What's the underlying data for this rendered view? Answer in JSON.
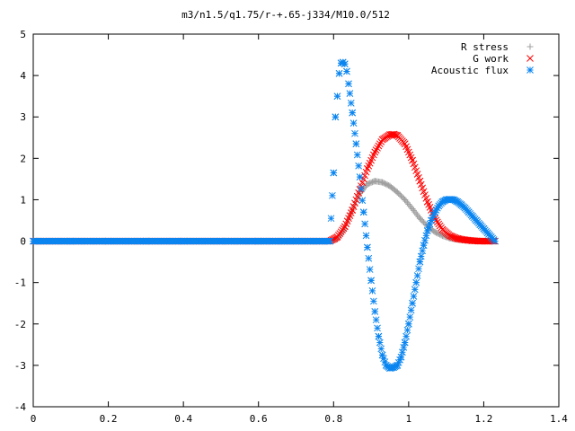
{
  "chart_data": {
    "type": "scatter",
    "title": "m3/n1.5/q1.75/r-+.65-j334/M10.0/512",
    "xlabel": "",
    "ylabel": "",
    "xlim": [
      0,
      1.4
    ],
    "ylim": [
      -4,
      5
    ],
    "xticks": [
      "0",
      "0.2",
      "0.4",
      "0.6",
      "0.8",
      "1",
      "1.2",
      "1.4"
    ],
    "yticks": [
      "-4",
      "-3",
      "-2",
      "-1",
      "0",
      "1",
      "2",
      "3",
      "4",
      "5"
    ],
    "grid": false,
    "legend_position": "top-right",
    "series": [
      {
        "name": "R stress",
        "marker": "plus",
        "color": "#a0a0a0",
        "x": [
          0,
          0.1,
          0.2,
          0.3,
          0.4,
          0.5,
          0.6,
          0.7,
          0.79,
          0.81,
          0.83,
          0.85,
          0.87,
          0.89,
          0.91,
          0.93,
          0.95,
          0.97,
          0.99,
          1.01,
          1.03,
          1.05,
          1.07,
          1.09,
          1.11,
          1.13,
          1.15,
          1.17,
          1.19,
          1.21,
          1.23
        ],
        "y": [
          0,
          0,
          0,
          0,
          0,
          0,
          0,
          0,
          0,
          0.05,
          0.3,
          0.75,
          1.15,
          1.38,
          1.45,
          1.42,
          1.33,
          1.18,
          1.0,
          0.78,
          0.55,
          0.36,
          0.22,
          0.13,
          0.07,
          0.04,
          0.02,
          0.01,
          0.0,
          0.0,
          0.0
        ]
      },
      {
        "name": "G work",
        "marker": "cross",
        "color": "#ff0000",
        "x": [
          0,
          0.1,
          0.2,
          0.3,
          0.4,
          0.5,
          0.6,
          0.7,
          0.79,
          0.81,
          0.83,
          0.85,
          0.87,
          0.89,
          0.91,
          0.93,
          0.95,
          0.96,
          0.97,
          0.99,
          1.01,
          1.03,
          1.05,
          1.07,
          1.09,
          1.11,
          1.13,
          1.15,
          1.17,
          1.19,
          1.21,
          1.23
        ],
        "y": [
          0,
          0,
          0,
          0,
          0,
          0,
          0,
          0,
          0,
          0.1,
          0.35,
          0.75,
          1.25,
          1.75,
          2.15,
          2.45,
          2.57,
          2.58,
          2.55,
          2.35,
          1.95,
          1.45,
          0.95,
          0.55,
          0.28,
          0.13,
          0.06,
          0.03,
          0.01,
          0.0,
          0.0,
          0.0
        ]
      },
      {
        "name": "Acoustic flux",
        "marker": "star",
        "color": "#0a85f0",
        "x": [
          0,
          0.1,
          0.2,
          0.3,
          0.4,
          0.5,
          0.6,
          0.7,
          0.79,
          0.8,
          0.805,
          0.81,
          0.815,
          0.82,
          0.825,
          0.83,
          0.835,
          0.84,
          0.85,
          0.86,
          0.87,
          0.88,
          0.89,
          0.9,
          0.91,
          0.92,
          0.93,
          0.94,
          0.95,
          0.96,
          0.97,
          0.98,
          0.99,
          1.0,
          1.01,
          1.02,
          1.03,
          1.04,
          1.05,
          1.06,
          1.07,
          1.08,
          1.09,
          1.1,
          1.11,
          1.12,
          1.13,
          1.14,
          1.15,
          1.16,
          1.17,
          1.18,
          1.19,
          1.2,
          1.21,
          1.22,
          1.23
        ],
        "y": [
          0,
          0,
          0,
          0,
          0,
          0,
          0,
          0,
          0,
          1.65,
          3.0,
          3.5,
          4.05,
          4.3,
          4.32,
          4.28,
          4.1,
          3.8,
          3.1,
          2.35,
          1.55,
          0.7,
          -0.15,
          -0.95,
          -1.7,
          -2.3,
          -2.75,
          -3.0,
          -3.07,
          -3.05,
          -3.0,
          -2.8,
          -2.45,
          -2.0,
          -1.5,
          -1.0,
          -0.5,
          -0.1,
          0.25,
          0.5,
          0.7,
          0.85,
          0.95,
          1.0,
          1.01,
          1.0,
          0.95,
          0.88,
          0.8,
          0.7,
          0.6,
          0.5,
          0.4,
          0.3,
          0.2,
          0.1,
          0.0
        ]
      }
    ]
  }
}
